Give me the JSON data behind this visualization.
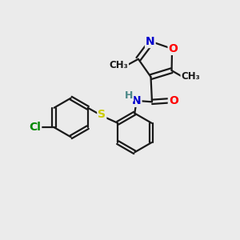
{
  "bg_color": "#ebebeb",
  "bond_color": "#1a1a1a",
  "bond_width": 1.6,
  "atom_colors": {
    "N": "#0000cc",
    "O": "#ff0000",
    "S": "#cccc00",
    "Cl": "#008800",
    "C": "#1a1a1a",
    "H": "#4a8888"
  },
  "font_size_atoms": 10,
  "font_size_methyl": 8.5
}
